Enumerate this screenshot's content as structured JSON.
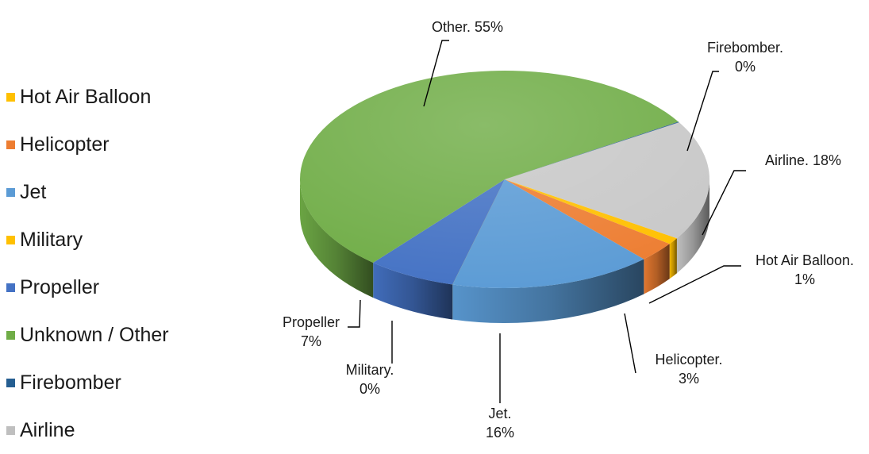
{
  "chart_data": {
    "type": "pie",
    "title": "",
    "legend_position": "left",
    "legend": [
      {
        "name": "Hot Air Balloon",
        "color": "#ffc000"
      },
      {
        "name": "Helicopter",
        "color": "#ed7d31"
      },
      {
        "name": "Jet",
        "color": "#5b9bd5"
      },
      {
        "name": "Military",
        "color": "#ffc000"
      },
      {
        "name": "Propeller",
        "color": "#4472c4"
      },
      {
        "name": "Unknown / Other",
        "color": "#70ad47"
      },
      {
        "name": "Firebomber",
        "color": "#255e91"
      },
      {
        "name": "Airline",
        "color": "#bfbfbf"
      }
    ],
    "slices": [
      {
        "name": "Airline",
        "value": 18,
        "label": "Airline. 18%",
        "color": "#c8c8c8"
      },
      {
        "name": "Hot Air Balloon",
        "value": 1,
        "label": "Hot Air Balloon.\n1%",
        "color": "#ffc000"
      },
      {
        "name": "Helicopter",
        "value": 3,
        "label": "Helicopter.\n3%",
        "color": "#ed7d31"
      },
      {
        "name": "Jet",
        "value": 16,
        "label": "Jet.\n16%",
        "color": "#5b9bd5"
      },
      {
        "name": "Military",
        "value": 0,
        "label": "Military.\n0%",
        "color": "#ffc000"
      },
      {
        "name": "Propeller",
        "value": 7,
        "label": "Propeller\n7%",
        "color": "#4472c4"
      },
      {
        "name": "Other",
        "value": 55,
        "label": "Other. 55%",
        "color": "#70ad47"
      },
      {
        "name": "Firebomber",
        "value": 0,
        "label": "Firebomber.\n0%",
        "color": "#255e91"
      }
    ]
  }
}
